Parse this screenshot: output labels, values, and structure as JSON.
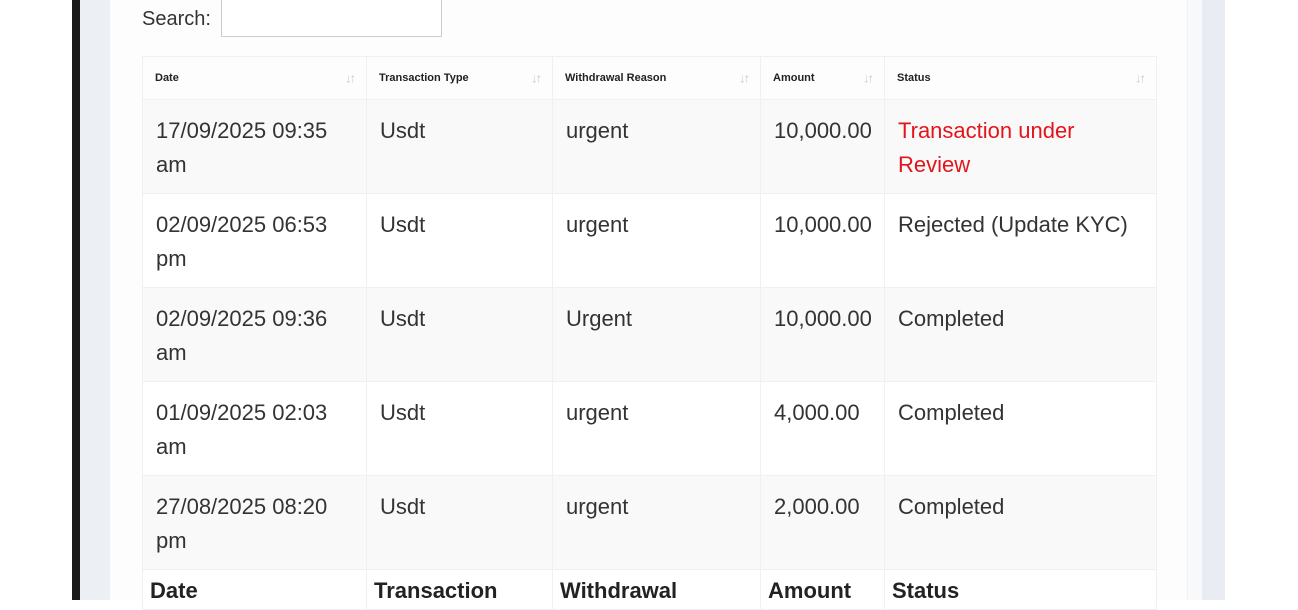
{
  "search": {
    "label": "Search:",
    "value": ""
  },
  "table": {
    "headers": [
      "Date",
      "Transaction Type",
      "Withdrawal Reason",
      "Amount",
      "Status"
    ],
    "footer": [
      "Date",
      "Transaction",
      "Withdrawal",
      "Amount",
      "Status"
    ],
    "rows": [
      {
        "date": "17/09/2025 09:35 am",
        "type": "Usdt",
        "reason": "urgent",
        "amount": "10,000.00",
        "status": "Transaction under Review",
        "status_color": "#e4141b"
      },
      {
        "date": "02/09/2025 06:53 pm",
        "type": "Usdt",
        "reason": "urgent",
        "amount": "10,000.00",
        "status": "Rejected (Update KYC)"
      },
      {
        "date": "02/09/2025 09:36 am",
        "type": "Usdt",
        "reason": "Urgent",
        "amount": "10,000.00",
        "status": "Completed"
      },
      {
        "date": "01/09/2025 02:03 am",
        "type": "Usdt",
        "reason": "urgent",
        "amount": "4,000.00",
        "status": "Completed"
      },
      {
        "date": "27/08/2025 08:20 pm",
        "type": "Usdt",
        "reason": "urgent",
        "amount": "2,000.00",
        "status": "Completed"
      }
    ]
  },
  "icons": {
    "sort": "sort-arrows-icon"
  }
}
